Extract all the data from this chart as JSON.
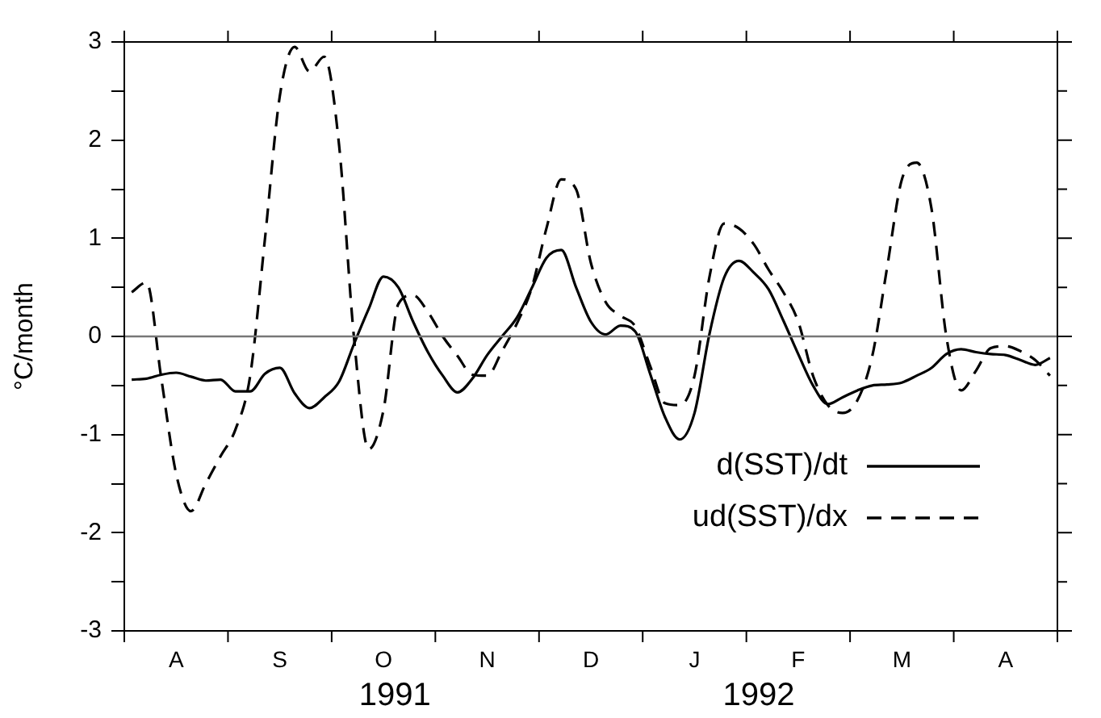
{
  "chart_data": {
    "type": "line",
    "ylabel": "°C/month",
    "ylim": [
      -3,
      3
    ],
    "categories": [
      null,
      null,
      null,
      "A",
      null,
      null,
      null,
      null,
      null,
      null,
      "S",
      null,
      null,
      null,
      null,
      null,
      null,
      "O",
      null,
      null,
      null,
      null,
      null,
      null,
      "N",
      null,
      null,
      null,
      null,
      null,
      null,
      "D",
      null,
      null,
      null,
      null,
      null,
      null,
      "J",
      null,
      null,
      null,
      null,
      null,
      null,
      "F",
      null,
      null,
      null,
      null,
      null,
      null,
      "M",
      null,
      null,
      null,
      null,
      null,
      null,
      "A",
      null,
      null,
      null
    ],
    "yticks": [
      -3,
      {
        "value": -2.5,
        "label": null
      },
      -2,
      {
        "value": -1.5,
        "label": null
      },
      -1,
      {
        "value": -0.5,
        "label": null
      },
      0,
      {
        "value": 0.5,
        "label": null
      },
      1,
      {
        "value": 1.5,
        "label": null
      },
      2,
      {
        "value": 2.5,
        "label": null
      },
      3
    ],
    "legend": "bottom right",
    "marker": "none",
    "grid": false,
    "ref_lines": [
      {
        "axis": "y",
        "value": 0,
        "color": "#777777"
      }
    ],
    "annotations": [
      "1991",
      "1992"
    ],
    "series": [
      {
        "name": "d(SST)/dt",
        "color": "#000000",
        "line_style": "solid",
        "values": [
          -0.44,
          -0.43,
          -0.39,
          -0.37,
          -0.41,
          -0.45,
          -0.44,
          -0.56,
          -0.56,
          -0.38,
          -0.32,
          -0.58,
          -0.73,
          -0.62,
          -0.46,
          -0.08,
          0.28,
          0.61,
          0.5,
          0.15,
          -0.16,
          -0.4,
          -0.57,
          -0.43,
          -0.19,
          0,
          0.19,
          0.49,
          0.8,
          0.88,
          0.5,
          0.15,
          0.02,
          0.11,
          0.05,
          -0.38,
          -0.82,
          -1.05,
          -0.78,
          0.02,
          0.6,
          0.77,
          0.65,
          0.48,
          0.16,
          -0.18,
          -0.5,
          -0.69,
          -0.62,
          -0.55,
          -0.5,
          -0.49,
          -0.47,
          -0.4,
          -0.32,
          -0.18,
          -0.13,
          -0.16,
          -0.18,
          -0.19,
          -0.24,
          -0.29,
          -0.22
        ]
      },
      {
        "name": "ud(SST)/dx",
        "color": "#000000",
        "line_style": "dashed",
        "values": [
          0.45,
          0.55,
          -0.43,
          -1.4,
          -1.78,
          -1.5,
          -1.22,
          -0.95,
          -0.4,
          1,
          2.45,
          2.95,
          2.7,
          2.85,
          1.95,
          0,
          -1.15,
          -0.75,
          0.33,
          0.42,
          0.25,
          0,
          -0.2,
          -0.39,
          -0.4,
          -0.15,
          0.13,
          0.49,
          1.1,
          1.6,
          1.5,
          0.75,
          0.35,
          0.21,
          0.1,
          -0.3,
          -0.68,
          -0.7,
          -0.4,
          0.6,
          1.15,
          1.1,
          0.94,
          0.68,
          0.45,
          0.15,
          -0.4,
          -0.7,
          -0.78,
          -0.65,
          -0.2,
          0.7,
          1.6,
          1.77,
          1.3,
          0,
          -0.55,
          -0.35,
          -0.12,
          -0.1,
          -0.15,
          -0.24,
          -0.4
        ]
      }
    ]
  }
}
